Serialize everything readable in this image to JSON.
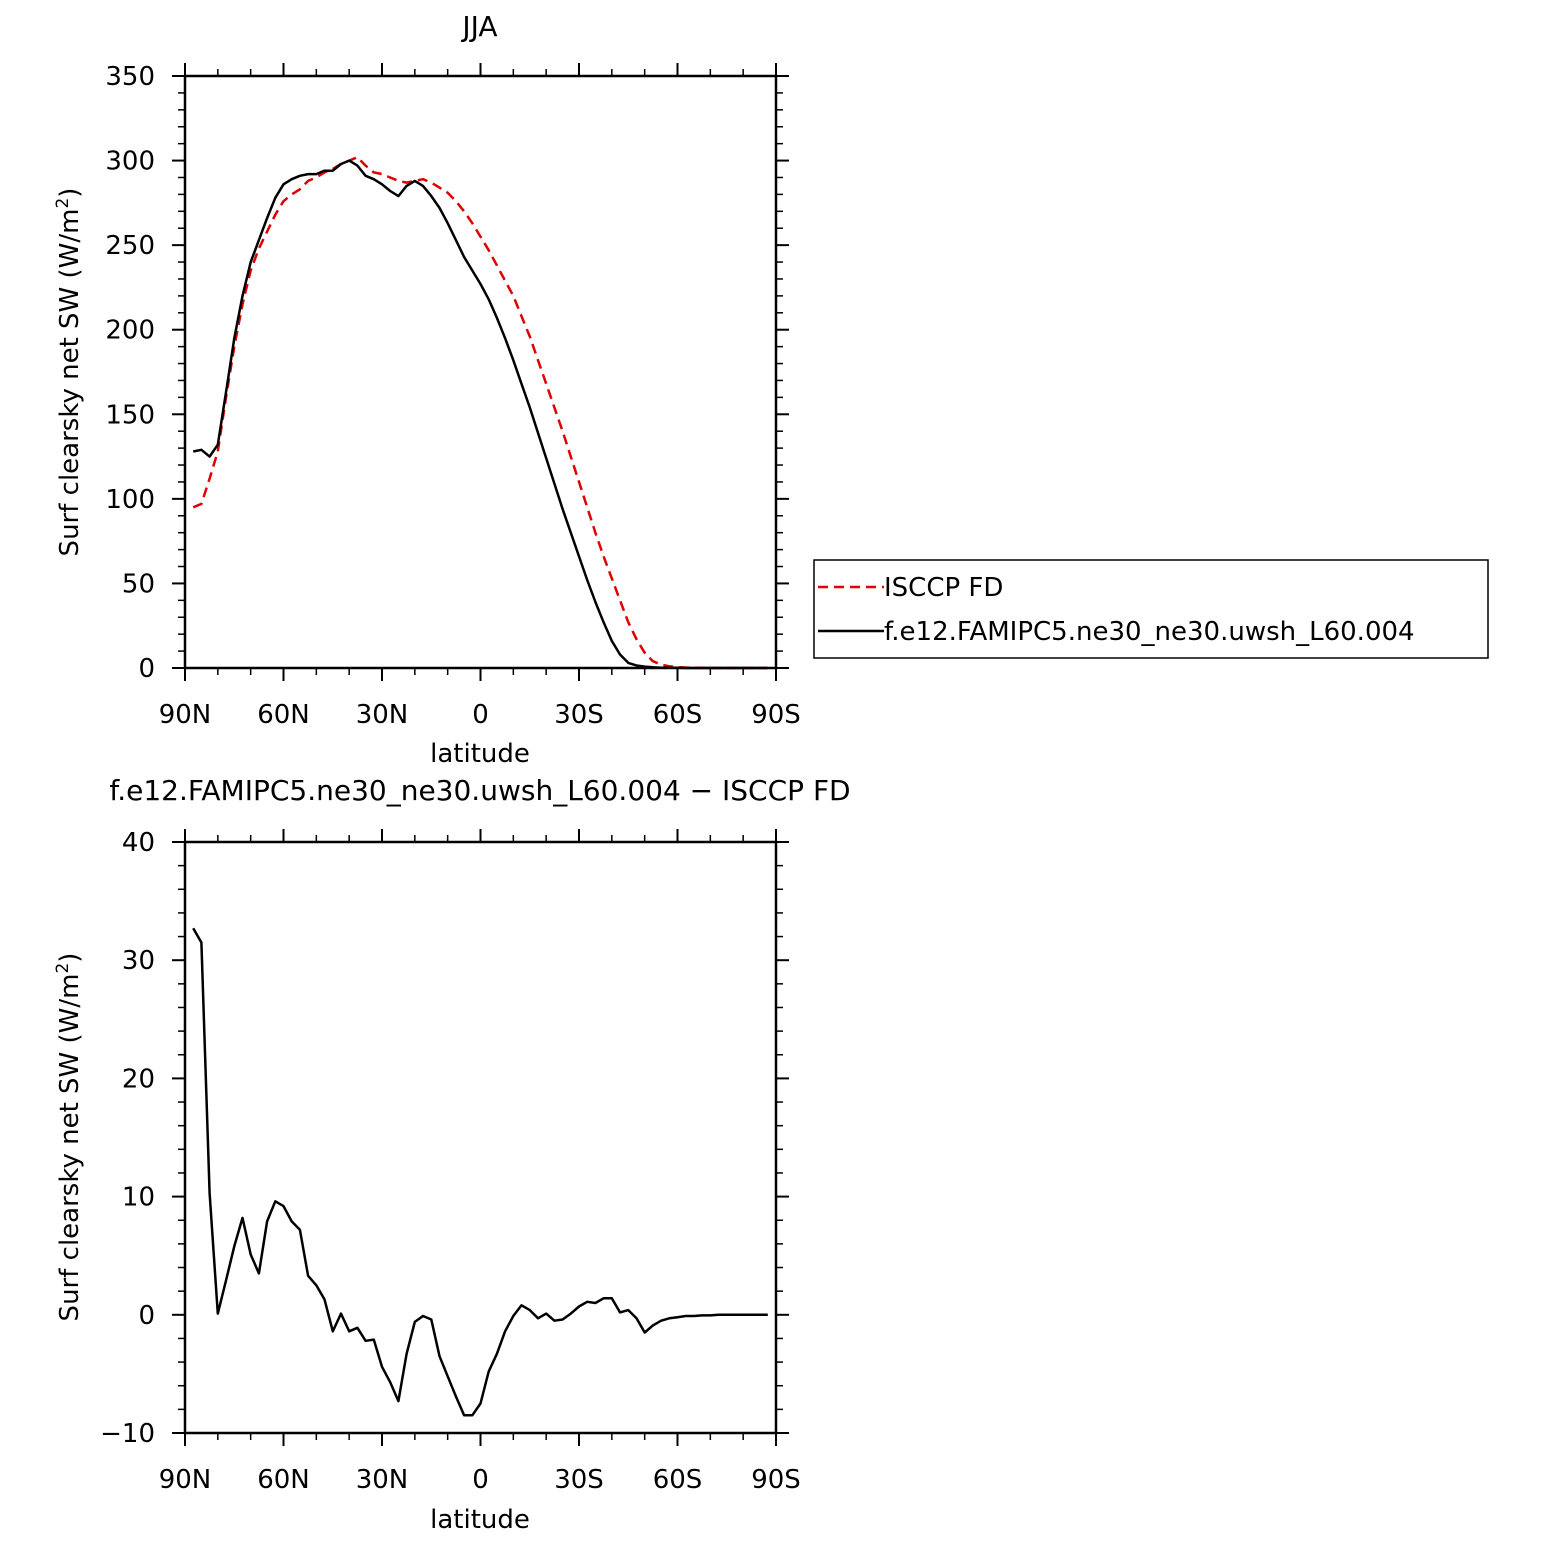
{
  "chart_data": [
    {
      "type": "line",
      "title": "JJA",
      "xlabel": "latitude",
      "ylabel": "Surf clearsky net SW (W/m²)",
      "ylabel_main": "Surf clearsky net SW (W/m",
      "ylabel_sup": "2",
      "ylabel_tail": ")",
      "xlim": [
        90,
        -90
      ],
      "ylim": [
        0,
        350
      ],
      "x_ticks": [
        {
          "value": 90,
          "label": "90N"
        },
        {
          "value": 60,
          "label": "60N"
        },
        {
          "value": 30,
          "label": "30N"
        },
        {
          "value": 0,
          "label": "0"
        },
        {
          "value": -30,
          "label": "30S"
        },
        {
          "value": -60,
          "label": "60S"
        },
        {
          "value": -90,
          "label": "90S"
        }
      ],
      "y_ticks": [
        0,
        50,
        100,
        150,
        200,
        250,
        300,
        350
      ],
      "legend_position": "right",
      "series": [
        {
          "name": "ISCCP FD",
          "color": "#e00000",
          "dash": "dashed",
          "x": [
            87.5,
            85,
            82.5,
            80,
            77.5,
            75,
            72.5,
            70,
            67.5,
            65,
            62.5,
            60,
            57.5,
            55,
            52.5,
            50,
            47.5,
            45,
            42.5,
            40,
            37.5,
            35,
            32.5,
            30,
            27.5,
            25,
            22.5,
            20,
            17.5,
            15,
            12.5,
            10,
            7.5,
            5,
            2.5,
            0,
            -2.5,
            -5,
            -7.5,
            -10,
            -12.5,
            -15,
            -17.5,
            -20,
            -22.5,
            -25,
            -27.5,
            -30,
            -32.5,
            -35,
            -37.5,
            -40,
            -42.5,
            -45,
            -47.5,
            -50,
            -52.5,
            -55,
            -57.5,
            -60,
            -62.5,
            -65,
            -67.5,
            -70,
            -72.5,
            -75,
            -77.5,
            -80,
            -82.5,
            -85,
            -87.5
          ],
          "y": [
            95,
            97,
            112,
            128,
            160,
            190,
            215,
            235,
            248,
            258,
            268,
            276,
            280,
            283,
            288,
            290,
            293,
            295,
            298,
            300,
            302,
            297,
            293,
            292,
            290,
            288,
            287,
            288,
            289,
            287,
            284,
            281,
            276,
            270,
            263,
            255,
            247,
            238,
            229,
            220,
            208,
            196,
            182,
            168,
            154,
            140,
            125,
            110,
            95,
            80,
            66,
            53,
            40,
            27,
            17,
            9,
            4,
            2,
            1,
            0.5,
            0.3,
            0.2,
            0.1,
            0.1,
            0,
            0,
            0,
            0,
            0,
            0,
            0
          ]
        },
        {
          "name": "f.e12.FAMIPC5.ne30_ne30.uwsh_L60.004",
          "color": "#000000",
          "dash": "solid",
          "x": [
            87.5,
            85,
            82.5,
            80,
            77.5,
            75,
            72.5,
            70,
            67.5,
            65,
            62.5,
            60,
            57.5,
            55,
            52.5,
            50,
            47.5,
            45,
            42.5,
            40,
            37.5,
            35,
            32.5,
            30,
            27.5,
            25,
            22.5,
            20,
            17.5,
            15,
            12.5,
            10,
            7.5,
            5,
            2.5,
            0,
            -2.5,
            -5,
            -7.5,
            -10,
            -12.5,
            -15,
            -17.5,
            -20,
            -22.5,
            -25,
            -27.5,
            -30,
            -32.5,
            -35,
            -37.5,
            -40,
            -42.5,
            -45,
            -47.5,
            -50,
            -52.5,
            -55,
            -57.5,
            -60,
            -62.5,
            -65,
            -67.5,
            -70,
            -72.5,
            -75,
            -77.5,
            -80,
            -82.5,
            -85,
            -87.5
          ],
          "y": [
            128,
            129,
            125,
            132,
            163,
            195,
            220,
            240,
            253,
            266,
            278,
            286,
            289,
            291,
            292,
            292,
            294,
            294,
            298,
            300,
            297,
            291,
            289,
            286,
            282,
            279,
            285,
            288,
            285,
            279,
            272,
            263,
            253,
            243,
            235,
            227,
            218,
            207,
            195,
            182,
            168,
            154,
            139,
            124,
            109,
            94,
            80,
            66,
            52,
            39,
            27,
            16,
            8,
            3,
            1.5,
            0.8,
            0.4,
            0.2,
            0.1,
            0.1,
            0,
            0,
            0,
            0,
            0,
            0,
            0,
            0,
            0,
            0,
            0
          ]
        }
      ]
    },
    {
      "type": "line",
      "title": "f.e12.FAMIPC5.ne30_ne30.uwsh_L60.004 − ISCCP FD",
      "xlabel": "latitude",
      "ylabel": "Surf clearsky net SW (W/m²)",
      "ylabel_main": "Surf clearsky net SW (W/m",
      "ylabel_sup": "2",
      "ylabel_tail": ")",
      "xlim": [
        90,
        -90
      ],
      "ylim": [
        -10,
        40
      ],
      "x_ticks": [
        {
          "value": 90,
          "label": "90N"
        },
        {
          "value": 60,
          "label": "60N"
        },
        {
          "value": 30,
          "label": "30N"
        },
        {
          "value": 0,
          "label": "0"
        },
        {
          "value": -30,
          "label": "30S"
        },
        {
          "value": -60,
          "label": "60S"
        },
        {
          "value": -90,
          "label": "90S"
        }
      ],
      "y_ticks": [
        -10,
        0,
        10,
        20,
        30,
        40
      ],
      "series": [
        {
          "color": "#000000",
          "dash": "solid",
          "x": [
            87.5,
            85,
            82.5,
            80,
            77.5,
            75,
            72.5,
            70,
            67.5,
            65,
            62.5,
            60,
            57.5,
            55,
            52.5,
            50,
            47.5,
            45,
            42.5,
            40,
            37.5,
            35,
            32.5,
            30,
            27.5,
            25,
            22.5,
            20,
            17.5,
            15,
            12.5,
            10,
            7.5,
            5,
            2.5,
            0,
            -2.5,
            -5,
            -7.5,
            -10,
            -12.5,
            -15,
            -17.5,
            -20,
            -22.5,
            -25,
            -27.5,
            -30,
            -32.5,
            -35,
            -37.5,
            -40,
            -42.5,
            -45,
            -47.5,
            -50,
            -52.5,
            -55,
            -57.5,
            -60,
            -62.5,
            -65,
            -67.5,
            -70,
            -72.5,
            -75,
            -77.5,
            -80,
            -82.5,
            -85,
            -87.5
          ],
          "y": [
            32.7,
            31.5,
            10.3,
            0.1,
            2.9,
            5.8,
            8.2,
            5.1,
            3.5,
            7.9,
            9.6,
            9.2,
            7.9,
            7.2,
            3.3,
            2.5,
            1.3,
            -1.4,
            0.1,
            -1.4,
            -1.1,
            -2.2,
            -2.1,
            -4.4,
            -5.7,
            -7.3,
            -3.3,
            -0.6,
            -0.1,
            -0.4,
            -3.5,
            -5.2,
            -6.9,
            -8.5,
            -8.5,
            -7.5,
            -4.8,
            -3.3,
            -1.4,
            -0.1,
            0.8,
            0.4,
            -0.3,
            0.1,
            -0.5,
            -0.4,
            0.1,
            0.7,
            1.1,
            1.0,
            1.4,
            1.4,
            0.2,
            0.4,
            -0.3,
            -1.5,
            -0.9,
            -0.5,
            -0.3,
            -0.2,
            -0.1,
            -0.1,
            -0.05,
            -0.05,
            0,
            0,
            0,
            0,
            0,
            0,
            0
          ]
        }
      ]
    }
  ]
}
